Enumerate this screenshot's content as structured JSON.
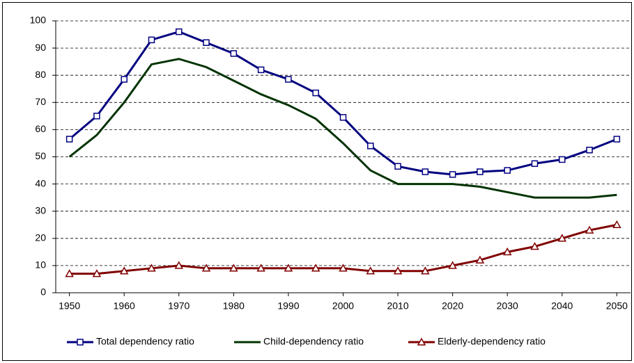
{
  "chart_data": {
    "type": "line",
    "x": [
      1950,
      1955,
      1960,
      1965,
      1970,
      1975,
      1980,
      1985,
      1990,
      1995,
      2000,
      2005,
      2010,
      2015,
      2020,
      2025,
      2030,
      2035,
      2040,
      2045,
      2050
    ],
    "xlim": [
      1947.5,
      2052.5
    ],
    "xticks": [
      1950,
      1960,
      1970,
      1980,
      1990,
      2000,
      2010,
      2020,
      2030,
      2040,
      2050
    ],
    "ylim": [
      0,
      100
    ],
    "yticks": [
      0,
      10,
      20,
      30,
      40,
      50,
      60,
      70,
      80,
      90,
      100
    ],
    "grid": true,
    "legend": "bottom",
    "series": [
      {
        "name": "Total dependency ratio",
        "color": "#000080",
        "marker": "square",
        "values": [
          56.5,
          65,
          78.5,
          93,
          96,
          92,
          88,
          82,
          78.5,
          73.5,
          64.5,
          54,
          46.5,
          44.5,
          43.5,
          44.5,
          45,
          47.5,
          49,
          52.5,
          56.5
        ]
      },
      {
        "name": "Child-dependency ratio",
        "color": "#003300",
        "marker": "none",
        "values": [
          50,
          58,
          70,
          84,
          86,
          83,
          78,
          73,
          69,
          64,
          55,
          45,
          40,
          40,
          40,
          39,
          37,
          35,
          35,
          35,
          36
        ]
      },
      {
        "name": "Elderly-dependency ratio",
        "color": "#800000",
        "marker": "triangle",
        "values": [
          7,
          7,
          8,
          9,
          10,
          9,
          9,
          9,
          9,
          9,
          9,
          8,
          8,
          8,
          10,
          12,
          15,
          17,
          20,
          23,
          25
        ]
      }
    ]
  }
}
